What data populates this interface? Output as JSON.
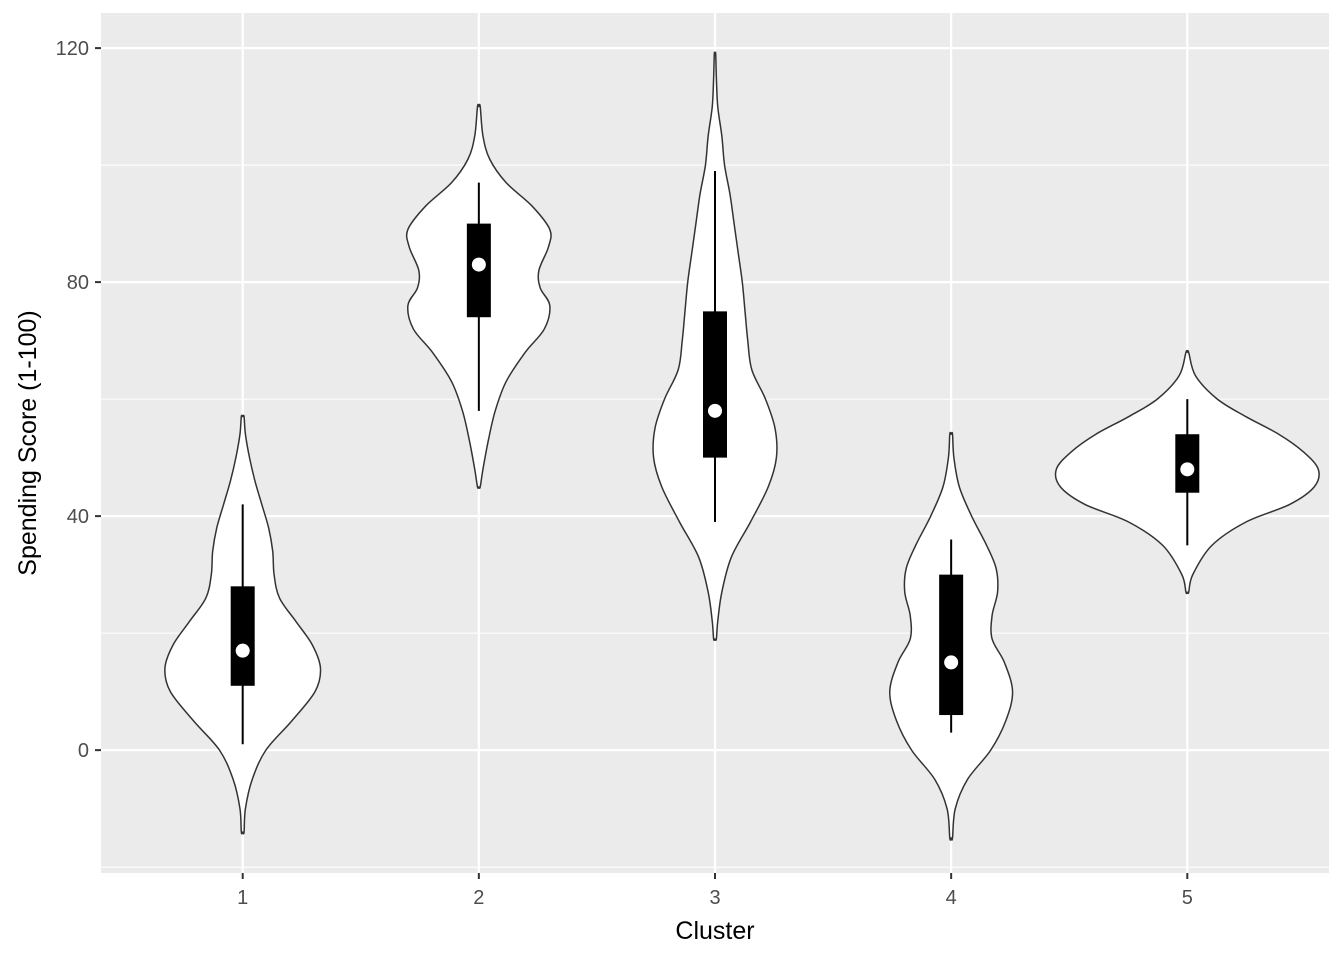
{
  "chart_data": {
    "type": "violin",
    "title": "",
    "xlabel": "Cluster",
    "ylabel": "Spending Score (1-100)",
    "categories": [
      "1",
      "2",
      "3",
      "4",
      "5"
    ],
    "y_ticks": [
      0,
      40,
      80,
      120
    ],
    "ylim": [
      -21,
      126
    ],
    "grid": true,
    "legend": "none",
    "colors": {
      "panel_background": "#EBEBEB",
      "grid": "#FFFFFF",
      "violin_fill": "#FFFFFF",
      "violin_outline": "#333333",
      "box": "#000000",
      "median_point": "#FFFFFF"
    },
    "series": [
      {
        "category": "1",
        "whisker_low": 1,
        "q1": 11,
        "median": 17,
        "q3": 28,
        "whisker_high": 42,
        "density": [
          [
            -14,
            0.01
          ],
          [
            -10,
            0.02
          ],
          [
            -5,
            0.07
          ],
          [
            0,
            0.17
          ],
          [
            5,
            0.36
          ],
          [
            10,
            0.53
          ],
          [
            14,
            0.57
          ],
          [
            18,
            0.51
          ],
          [
            22,
            0.39
          ],
          [
            26,
            0.27
          ],
          [
            30,
            0.23
          ],
          [
            34,
            0.22
          ],
          [
            38,
            0.19
          ],
          [
            42,
            0.14
          ],
          [
            46,
            0.09
          ],
          [
            50,
            0.05
          ],
          [
            54,
            0.02
          ],
          [
            57,
            0.01
          ]
        ]
      },
      {
        "category": "2",
        "whisker_low": 58,
        "q1": 74,
        "median": 83,
        "q3": 90,
        "whisker_high": 97,
        "density": [
          [
            45,
            0.01
          ],
          [
            48,
            0.03
          ],
          [
            53,
            0.07
          ],
          [
            58,
            0.12
          ],
          [
            63,
            0.2
          ],
          [
            68,
            0.34
          ],
          [
            72,
            0.48
          ],
          [
            76,
            0.52
          ],
          [
            79,
            0.45
          ],
          [
            82,
            0.44
          ],
          [
            86,
            0.51
          ],
          [
            89,
            0.52
          ],
          [
            93,
            0.39
          ],
          [
            97,
            0.2
          ],
          [
            101,
            0.08
          ],
          [
            105,
            0.03
          ],
          [
            110,
            0.01
          ]
        ]
      },
      {
        "category": "3",
        "whisker_low": 39,
        "q1": 50,
        "median": 58,
        "q3": 75,
        "whisker_high": 99,
        "density": [
          [
            19,
            0.01
          ],
          [
            22,
            0.02
          ],
          [
            27,
            0.05
          ],
          [
            33,
            0.12
          ],
          [
            39,
            0.26
          ],
          [
            45,
            0.39
          ],
          [
            50,
            0.45
          ],
          [
            55,
            0.44
          ],
          [
            60,
            0.37
          ],
          [
            65,
            0.27
          ],
          [
            70,
            0.24
          ],
          [
            75,
            0.22
          ],
          [
            80,
            0.2
          ],
          [
            85,
            0.17
          ],
          [
            90,
            0.14
          ],
          [
            95,
            0.11
          ],
          [
            100,
            0.07
          ],
          [
            105,
            0.05
          ],
          [
            110,
            0.02
          ],
          [
            115,
            0.01
          ],
          [
            119,
            0.005
          ]
        ]
      },
      {
        "category": "4",
        "whisker_low": 3,
        "q1": 6,
        "median": 15,
        "q3": 30,
        "whisker_high": 36,
        "density": [
          [
            -15,
            0.01
          ],
          [
            -10,
            0.03
          ],
          [
            -5,
            0.12
          ],
          [
            0,
            0.29
          ],
          [
            5,
            0.4
          ],
          [
            10,
            0.45
          ],
          [
            15,
            0.39
          ],
          [
            19,
            0.3
          ],
          [
            23,
            0.3
          ],
          [
            27,
            0.34
          ],
          [
            31,
            0.33
          ],
          [
            35,
            0.26
          ],
          [
            40,
            0.15
          ],
          [
            45,
            0.06
          ],
          [
            50,
            0.02
          ],
          [
            54,
            0.01
          ]
        ]
      },
      {
        "category": "5",
        "whisker_low": 35,
        "q1": 44,
        "median": 48,
        "q3": 54,
        "whisker_high": 60,
        "density": [
          [
            27,
            0.01
          ],
          [
            30,
            0.04
          ],
          [
            35,
            0.18
          ],
          [
            39,
            0.43
          ],
          [
            42,
            0.75
          ],
          [
            45,
            0.93
          ],
          [
            48,
            0.96
          ],
          [
            51,
            0.85
          ],
          [
            54,
            0.67
          ],
          [
            57,
            0.43
          ],
          [
            60,
            0.22
          ],
          [
            64,
            0.06
          ],
          [
            68,
            0.01
          ]
        ]
      }
    ]
  }
}
